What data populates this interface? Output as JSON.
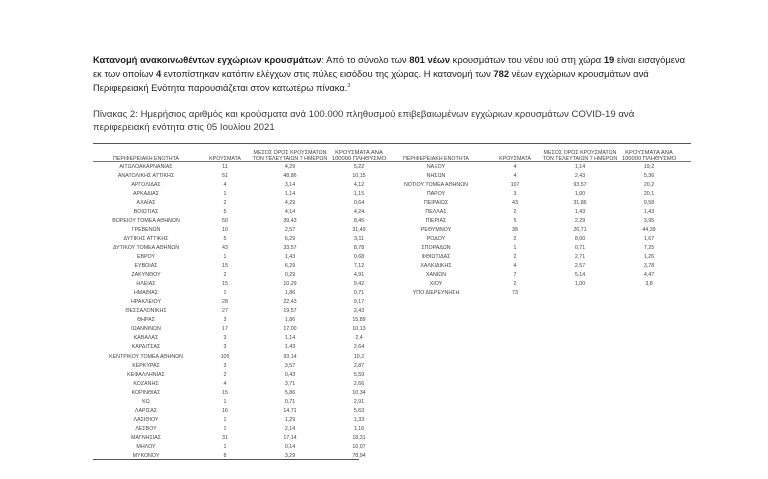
{
  "intro": {
    "bold_lead": "Κατανομή ανακοινωθέντων εγχώριων κρουσμάτων",
    "t1": ": Από το σύνολο των ",
    "n_total": "801 νέων",
    "t2": " κρουσμάτων του νέου ιού στη χώρα ",
    "n_imported": "19",
    "t3": " είναι εισαγόμενα εκ των οποίων ",
    "n_border": "4",
    "t4": " εντοπίστηκαν κατόπιν ελέγχων στις πύλες εισόδου της χώρας. Η κατανομή των ",
    "n_domestic": "782",
    "t5": " νέων εγχώριων κρουσμάτων ανά Περιφερειακή Ενότητα παρουσιάζεται στον κατωτέρω πίνακα.",
    "footnote": "3"
  },
  "caption": "Πίνακας 2: Ημερήσιος αριθμός και κρούσματα ανά 100.000 πληθυσμού επιβεβαιωμένων εγχώριων κρουσμάτων COVID-19 ανά περιφερειακή ενότητα στις 05 Ιουλίου 2021",
  "columns": [
    "ΠΕΡΙΦΕΡΕΙΑΚΗ ΕΝΟΤΗΤΑ",
    "ΚΡΟΥΣΜΑΤΑ",
    "ΜΕΣΟΣ ΟΡΟΣ ΚΡΟΥΣΜΑΤΩΝ ΤΟΝ ΤΕΛΕΥΤΑΙΩΝ 7 ΗΜΕΡΩΝ",
    "ΚΡΟΥΣΜΑΤΑ ΑΝΑ 100000 ΠΛΗΘΥΣΜΟ"
  ],
  "left_rows": [
    [
      "ΑΙΤΩΛΟΑΚΑΡΝΑΝΙΑΣ",
      "11",
      "4,29",
      "5,22"
    ],
    [
      "ΑΝΑΤΟΛΙΚΗΣ ΑΤΤΙΚΗΣ",
      "51",
      "48,86",
      "10,15"
    ],
    [
      "ΑΡΓΟΛΙΔΑΣ",
      "4",
      "3,14",
      "4,12"
    ],
    [
      "ΑΡΚΑΔΙΑΣ",
      "1",
      "1,14",
      "1,15"
    ],
    [
      "ΑΧΑΪΑΣ",
      "2",
      "4,29",
      "0,64"
    ],
    [
      "ΒΟΙΩΤΙΑΣ",
      "5",
      "4,14",
      "4,24"
    ],
    [
      "ΒΟΡΕΙΟΥ ΤΟΜΕΑ ΑΘΗΝΩΝ",
      "50",
      "39,43",
      "8,45"
    ],
    [
      "ΓΡΕΒΕΝΩΝ",
      "10",
      "2,57",
      "31,49"
    ],
    [
      "ΔΥΤΙΚΗΣ ΑΤΤΙΚΗΣ",
      "5",
      "6,29",
      "3,11"
    ],
    [
      "ΔΥΤΙΚΟΥ ΤΟΜΕΑ ΑΘΗΝΩΝ",
      "43",
      "33,57",
      "8,78"
    ],
    [
      "ΕΒΡΟΥ",
      "1",
      "1,43",
      "0,68"
    ],
    [
      "ΕΥΒΟΙΑΣ",
      "15",
      "6,29",
      "7,12"
    ],
    [
      "ΖΑΚΥΝΘΟΥ",
      "2",
      "0,29",
      "4,91"
    ],
    [
      "ΗΛΕΙΑΣ",
      "15",
      "10,29",
      "9,42"
    ],
    [
      "ΗΜΑΘΙΑΣ",
      "1",
      "1,86",
      "0,71"
    ],
    [
      "ΗΡΑΚΛΕΙΟΥ",
      "28",
      "22,43",
      "9,17"
    ],
    [
      "ΘΕΣΣΑΛΟΝΙΚΗΣ",
      "27",
      "19,57",
      "2,43"
    ],
    [
      "ΘΗΡΑΣ",
      "3",
      "1,86",
      "15,89"
    ],
    [
      "ΙΩΑΝΝΙΝΩΝ",
      "17",
      "17,00",
      "10,13"
    ],
    [
      "ΚΑΒΑΛΑΣ",
      "3",
      "1,14",
      "2,4"
    ],
    [
      "ΚΑΡΔΙΤΣΑΣ",
      "3",
      "1,43",
      "2,64"
    ],
    [
      "ΚΕΝΤΡΙΚΟΥ ΤΟΜΕΑ ΑΘΗΝΩΝ",
      "105",
      "93,14",
      "10,2"
    ],
    [
      "ΚΕΡΚΥΡΑΣ",
      "3",
      "3,57",
      "2,87"
    ],
    [
      "ΚΕΦΑΛΛΗΝΙΑΣ",
      "2",
      "0,43",
      "5,59"
    ],
    [
      "ΚΟΖΑΝΗΣ",
      "4",
      "3,71",
      "2,66"
    ],
    [
      "ΚΟΡΙΝΘΙΑΣ",
      "15",
      "5,86",
      "10,34"
    ],
    [
      "ΚΩ",
      "1",
      "0,71",
      "2,91"
    ],
    [
      "ΛΑΡΙΣΑΣ",
      "16",
      "14,71",
      "5,63"
    ],
    [
      "ΛΑΣΙΘΙΟΥ",
      "1",
      "1,29",
      "1,33"
    ],
    [
      "ΛΕΣΒΟΥ",
      "1",
      "2,14",
      "1,16"
    ],
    [
      "ΜΑΓΝΗΣΙΑΣ",
      "31",
      "17,14",
      "18,31"
    ],
    [
      "ΜΗΛΟΥ",
      "1",
      "0,14",
      "10,07"
    ],
    [
      "ΜΥΚΟΝΟΥ",
      "8",
      "3,29",
      "78,94"
    ]
  ],
  "right_rows": [
    [
      "ΝΑΞΟΥ",
      "4",
      "1,14",
      "19,2"
    ],
    [
      "ΝΗΣΩΝ",
      "4",
      "2,43",
      "5,36"
    ],
    [
      "ΝΟΤΙΟΥ ΤΟΜΕΑ ΑΘΗΝΩΝ",
      "107",
      "93,57",
      "20,2"
    ],
    [
      "ΠΑΡΟΥ",
      "3",
      "1,00",
      "20,1"
    ],
    [
      "ΠΕΙΡΑΙΩΣ",
      "43",
      "31,86",
      "9,58"
    ],
    [
      "ΠΕΛΛΑΣ",
      "2",
      "1,43",
      "1,43"
    ],
    [
      "ΠΙΕΡΙΑΣ",
      "5",
      "2,29",
      "3,95"
    ],
    [
      "ΡΕΘΥΜΝΟΥ",
      "38",
      "26,71",
      "44,39"
    ],
    [
      "ΡΟΔΟΥ",
      "2",
      "8,00",
      "1,67"
    ],
    [
      "ΣΠΟΡΑΔΩΝ",
      "1",
      "0,71",
      "7,25"
    ],
    [
      "ΦΘΙΩΤΙΔΑΣ",
      "2",
      "2,71",
      "1,26"
    ],
    [
      "ΧΑΛΚΙΔΙΚΗΣ",
      "4",
      "2,57",
      "3,78"
    ],
    [
      "ΧΑΝΙΩΝ",
      "7",
      "5,14",
      "4,47"
    ],
    [
      "ΧΙΟΥ",
      "2",
      "1,00",
      "3,8"
    ],
    [
      "ΥΠΟ ΔΙΕΡΕΥΝΗΣΗ",
      "73",
      "",
      ""
    ]
  ]
}
